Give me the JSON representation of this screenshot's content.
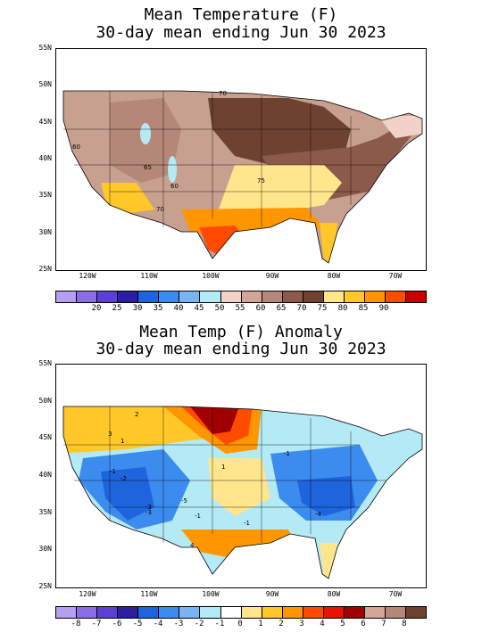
{
  "map1": {
    "title_line1": "Mean Temperature (F)",
    "title_line2": "30-day mean ending Jun 30 2023",
    "lat_labels": [
      "55N",
      "50N",
      "45N",
      "40N",
      "35N",
      "30N",
      "25N"
    ],
    "lon_labels": [
      "120W",
      "110W",
      "100W",
      "90W",
      "80W",
      "70W"
    ],
    "contour_labels": [
      "70",
      "60",
      "65",
      "60",
      "75",
      "70"
    ],
    "colorbar_labels": [
      "20",
      "25",
      "30",
      "35",
      "40",
      "45",
      "50",
      "55",
      "60",
      "65",
      "70",
      "75",
      "80",
      "85",
      "90"
    ],
    "colorbar_colors": [
      "#b4a0f0",
      "#8a6ee6",
      "#5a41d2",
      "#2d1ea0",
      "#1e64dc",
      "#3c8cf0",
      "#78b4f0",
      "#b4eaf5",
      "#f0d2c8",
      "#d2a596",
      "#b48778",
      "#8c5a4b",
      "#6e4131",
      "#ffe68c",
      "#ffc828",
      "#ff9600",
      "#ff4b00",
      "#c80000"
    ]
  },
  "map2": {
    "title_line1": "Mean Temp (F) Anomaly",
    "title_line2": "30-day mean ending Jun 30 2023",
    "lat_labels": [
      "55N",
      "50N",
      "45N",
      "40N",
      "35N",
      "30N",
      "25N"
    ],
    "lon_labels": [
      "120W",
      "110W",
      "100W",
      "90W",
      "80W",
      "70W"
    ],
    "contour_labels": [
      "2",
      "3",
      "1",
      "-1",
      "-3",
      "-2",
      "-3",
      "-1",
      "-5",
      "1",
      "-1",
      "-4",
      "4",
      "-1"
    ],
    "colorbar_labels": [
      "-8",
      "-7",
      "-6",
      "-5",
      "-4",
      "-3",
      "-2",
      "-1",
      "0",
      "1",
      "2",
      "3",
      "4",
      "5",
      "6",
      "7",
      "8"
    ],
    "colorbar_colors": [
      "#b4a0f0",
      "#8a6ee6",
      "#5a41d2",
      "#2d1ea0",
      "#1e64dc",
      "#3c8cf0",
      "#78b4f0",
      "#b4eaf5",
      "#ffffff",
      "#ffe68c",
      "#ffc828",
      "#ff9600",
      "#ff4b00",
      "#e61400",
      "#a00000",
      "#d2a596",
      "#b48778",
      "#6e4131"
    ]
  }
}
